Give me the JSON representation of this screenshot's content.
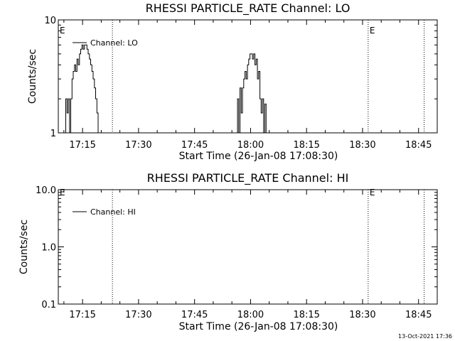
{
  "timestamp": "13-Oct-2021 17:36",
  "colors": {
    "background": "#ffffff",
    "foreground": "#000000"
  },
  "chart_data": [
    {
      "type": "line",
      "title": "RHESSI PARTICLE_RATE Channel: LO",
      "xlabel": "Start Time (26-Jan-08 17:08:30)",
      "ylabel": "Counts/sec",
      "y_scale": "log",
      "ylim": [
        1,
        10
      ],
      "y_ticks": [
        {
          "value": 1,
          "label": "1"
        },
        {
          "value": 10,
          "label": "10"
        }
      ],
      "xlim": [
        "17:08:30",
        "18:50:00"
      ],
      "x_ticks": [
        "17:15",
        "17:30",
        "17:45",
        "18:00",
        "18:15",
        "18:30",
        "18:45"
      ],
      "legend": "top-left",
      "grid": false,
      "series": [
        {
          "name": "Channel: LO",
          "x": [
            "17:10:10",
            "17:10:30",
            "17:10:50",
            "17:11:10",
            "17:11:30",
            "17:11:50",
            "17:12:10",
            "17:12:30",
            "17:12:50",
            "17:13:10",
            "17:13:30",
            "17:13:50",
            "17:14:10",
            "17:14:30",
            "17:14:50",
            "17:15:10",
            "17:15:30",
            "17:15:50",
            "17:16:10",
            "17:16:30",
            "17:16:50",
            "17:17:10",
            "17:17:30",
            "17:17:50",
            "17:18:10",
            "17:18:30",
            "17:18:50",
            "17:19:10",
            "17:19:30",
            "17:56:10",
            "17:56:30",
            "17:56:50",
            "17:57:10",
            "17:57:30",
            "17:57:50",
            "17:58:10",
            "17:58:30",
            "17:58:50",
            "17:59:10",
            "17:59:30",
            "17:59:50",
            "18:00:10",
            "18:00:30",
            "18:00:50",
            "18:01:10",
            "18:01:30",
            "18:01:50",
            "18:02:10",
            "18:02:30",
            "18:02:50",
            "18:03:10",
            "18:03:30",
            "18:03:50",
            "18:04:10"
          ],
          "values": [
            1.0,
            2.0,
            1.5,
            2.0,
            1.0,
            2.0,
            3.0,
            3.5,
            4.0,
            3.5,
            4.5,
            4.0,
            5.0,
            5.5,
            6.0,
            5.5,
            6.0,
            6.0,
            5.5,
            5.0,
            4.5,
            4.0,
            3.5,
            3.0,
            2.5,
            2.0,
            1.5,
            1.0,
            1.0,
            1.0,
            2.0,
            1.0,
            2.5,
            1.5,
            2.5,
            3.0,
            3.5,
            3.0,
            4.0,
            4.5,
            5.0,
            5.0,
            4.5,
            5.0,
            4.0,
            4.5,
            3.0,
            3.5,
            2.0,
            1.5,
            2.0,
            1.0,
            1.8,
            1.0
          ]
        }
      ],
      "annotations": [
        {
          "text": "E",
          "x": "17:08:30"
        },
        {
          "text": "E",
          "x": "18:31:30"
        }
      ],
      "vlines": [
        "17:23:00",
        "18:31:30",
        "18:46:30"
      ]
    },
    {
      "type": "line",
      "title": "RHESSI PARTICLE_RATE Channel: HI",
      "xlabel": "Start Time (26-Jan-08 17:08:30)",
      "ylabel": "Counts/sec",
      "y_scale": "log",
      "ylim": [
        0.1,
        10
      ],
      "y_ticks": [
        {
          "value": 0.1,
          "label": "0.1"
        },
        {
          "value": 1,
          "label": "1.0"
        },
        {
          "value": 10,
          "label": "10.0"
        }
      ],
      "xlim": [
        "17:08:30",
        "18:50:00"
      ],
      "x_ticks": [
        "17:15",
        "17:30",
        "17:45",
        "18:00",
        "18:15",
        "18:30",
        "18:45"
      ],
      "legend": "top-left",
      "grid": false,
      "series": [
        {
          "name": "Channel: HI",
          "x": [],
          "values": []
        }
      ],
      "annotations": [
        {
          "text": "E",
          "x": "17:08:30"
        },
        {
          "text": "E",
          "x": "18:31:30"
        }
      ],
      "vlines": [
        "17:23:00",
        "18:31:30",
        "18:46:30"
      ]
    }
  ]
}
